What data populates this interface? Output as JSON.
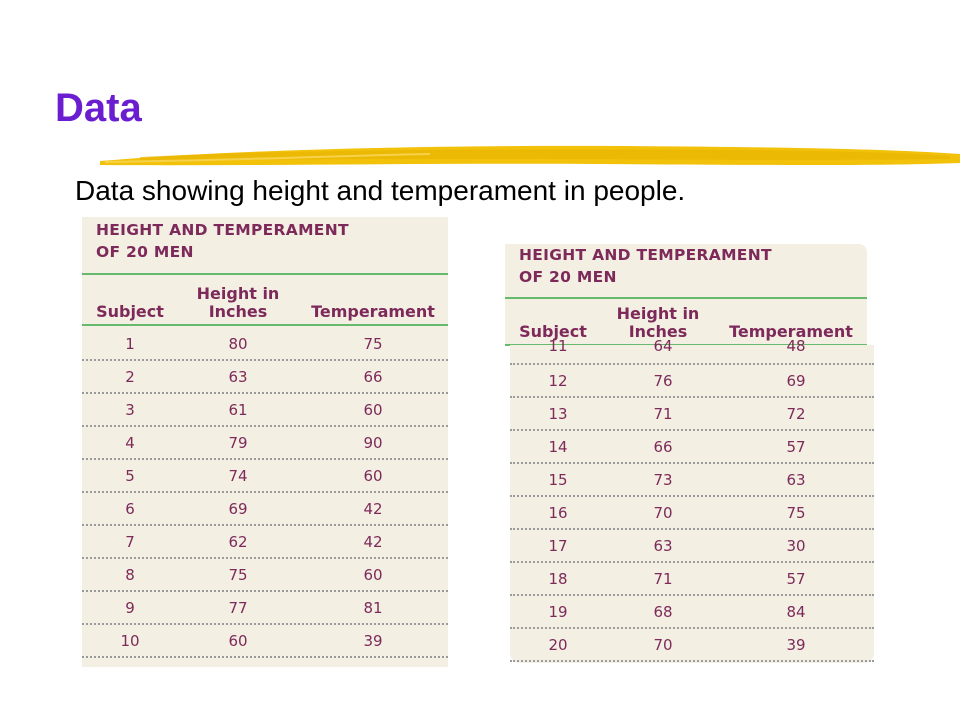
{
  "slide": {
    "title": "Data",
    "subtitle": "Data showing height and temperament in people."
  },
  "table": {
    "title_line1": "HEIGHT AND TEMPERAMENT",
    "title_line2": "OF 20 MEN",
    "headers": {
      "subject": "Subject",
      "height_line1": "Height in",
      "height_line2": "Inches",
      "temperament": "Temperament"
    },
    "rows_left": [
      {
        "subject": "1",
        "height": "80",
        "temperament": "75"
      },
      {
        "subject": "2",
        "height": "63",
        "temperament": "66"
      },
      {
        "subject": "3",
        "height": "61",
        "temperament": "60"
      },
      {
        "subject": "4",
        "height": "79",
        "temperament": "90"
      },
      {
        "subject": "5",
        "height": "74",
        "temperament": "60"
      },
      {
        "subject": "6",
        "height": "69",
        "temperament": "42"
      },
      {
        "subject": "7",
        "height": "62",
        "temperament": "42"
      },
      {
        "subject": "8",
        "height": "75",
        "temperament": "60"
      },
      {
        "subject": "9",
        "height": "77",
        "temperament": "81"
      },
      {
        "subject": "10",
        "height": "60",
        "temperament": "39"
      }
    ],
    "row_partial": {
      "subject": "11",
      "height": "64",
      "temperament": "48"
    },
    "rows_right": [
      {
        "subject": "12",
        "height": "76",
        "temperament": "69"
      },
      {
        "subject": "13",
        "height": "71",
        "temperament": "72"
      },
      {
        "subject": "14",
        "height": "66",
        "temperament": "57"
      },
      {
        "subject": "15",
        "height": "73",
        "temperament": "63"
      },
      {
        "subject": "16",
        "height": "70",
        "temperament": "75"
      },
      {
        "subject": "17",
        "height": "63",
        "temperament": "30"
      },
      {
        "subject": "18",
        "height": "71",
        "temperament": "57"
      },
      {
        "subject": "19",
        "height": "68",
        "temperament": "84"
      },
      {
        "subject": "20",
        "height": "70",
        "temperament": "39"
      }
    ]
  },
  "colors": {
    "title": "#6a1ed0",
    "table_text": "#7d2a5b",
    "table_bg": "#f3efe2",
    "rule": "#67b96e",
    "highlight": "#f2c10a"
  }
}
